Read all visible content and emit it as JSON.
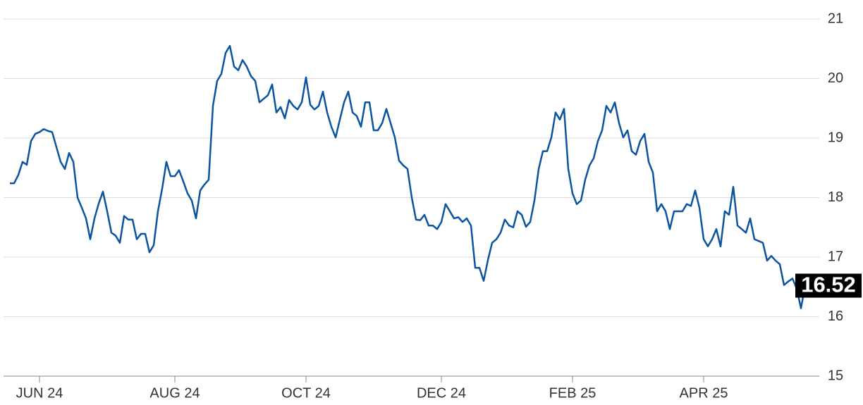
{
  "chart_data": {
    "type": "line",
    "categories": [
      null,
      null,
      null,
      null,
      null,
      null,
      null,
      "JUN 24",
      null,
      null,
      null,
      null,
      null,
      null,
      null,
      null,
      null,
      null,
      null,
      null,
      null,
      null,
      null,
      null,
      null,
      null,
      null,
      null,
      null,
      null,
      null,
      null,
      null,
      null,
      null,
      null,
      null,
      null,
      null,
      "AUG 24",
      null,
      null,
      null,
      null,
      null,
      null,
      null,
      null,
      null,
      null,
      null,
      null,
      null,
      null,
      null,
      null,
      null,
      null,
      null,
      null,
      null,
      null,
      null,
      null,
      null,
      null,
      null,
      null,
      null,
      null,
      "OCT 24",
      null,
      null,
      null,
      null,
      null,
      null,
      null,
      null,
      null,
      null,
      null,
      null,
      null,
      null,
      null,
      null,
      null,
      null,
      null,
      null,
      null,
      null,
      null,
      null,
      null,
      null,
      null,
      null,
      null,
      null,
      null,
      "DEC 24",
      null,
      null,
      null,
      null,
      null,
      null,
      null,
      null,
      null,
      null,
      null,
      null,
      null,
      null,
      null,
      null,
      null,
      null,
      null,
      null,
      null,
      null,
      null,
      null,
      null,
      null,
      null,
      null,
      null,
      null,
      "FEB 25",
      null,
      null,
      null,
      null,
      null,
      null,
      null,
      null,
      null,
      null,
      null,
      null,
      null,
      null,
      null,
      null,
      null,
      null,
      null,
      null,
      null,
      null,
      null,
      null,
      null,
      null,
      null,
      null,
      null,
      null,
      "APR 25",
      null,
      null,
      null,
      null,
      null,
      null,
      null,
      null,
      null,
      null,
      null,
      null,
      null,
      null,
      null,
      null,
      null,
      null,
      null,
      null,
      null,
      null,
      null,
      null
    ],
    "series": [
      {
        "color": "#0b54a0",
        "values": [
          18.24,
          18.24,
          18.38,
          18.6,
          18.55,
          18.95,
          19.07,
          19.1,
          19.15,
          19.12,
          19.1,
          18.85,
          18.6,
          18.48,
          18.75,
          18.6,
          18.0,
          17.83,
          17.65,
          17.3,
          17.65,
          17.9,
          18.1,
          17.77,
          17.41,
          17.36,
          17.24,
          17.69,
          17.63,
          17.63,
          17.3,
          17.39,
          17.39,
          17.08,
          17.2,
          17.77,
          18.15,
          18.6,
          18.36,
          18.36,
          18.46,
          18.27,
          18.07,
          17.95,
          17.65,
          18.12,
          18.22,
          18.3,
          19.54,
          19.96,
          20.08,
          20.43,
          20.55,
          20.2,
          20.14,
          20.31,
          20.2,
          20.04,
          19.96,
          19.6,
          19.66,
          19.72,
          19.9,
          19.43,
          19.52,
          19.33,
          19.64,
          19.54,
          19.48,
          19.6,
          20.02,
          19.56,
          19.48,
          19.54,
          19.78,
          19.43,
          19.19,
          19.01,
          19.31,
          19.6,
          19.78,
          19.43,
          19.37,
          19.19,
          19.6,
          19.6,
          19.13,
          19.13,
          19.25,
          19.49,
          19.25,
          19.01,
          18.62,
          18.54,
          18.48,
          18.0,
          17.63,
          17.62,
          17.71,
          17.53,
          17.53,
          17.47,
          17.59,
          17.89,
          17.77,
          17.65,
          17.67,
          17.59,
          17.65,
          17.53,
          16.82,
          16.82,
          16.6,
          16.95,
          17.24,
          17.3,
          17.41,
          17.63,
          17.53,
          17.5,
          17.77,
          17.71,
          17.51,
          17.59,
          17.95,
          18.48,
          18.78,
          18.78,
          19.01,
          19.43,
          19.31,
          19.49,
          18.48,
          18.07,
          17.89,
          17.95,
          18.3,
          18.54,
          18.66,
          18.95,
          19.13,
          19.54,
          19.43,
          19.6,
          19.25,
          19.01,
          19.13,
          18.78,
          18.72,
          18.95,
          19.07,
          18.6,
          18.42,
          17.77,
          17.89,
          17.77,
          17.47,
          17.77,
          17.77,
          17.77,
          17.89,
          17.86,
          18.12,
          17.83,
          17.3,
          17.18,
          17.3,
          17.47,
          17.18,
          17.77,
          17.71,
          18.18,
          17.53,
          17.47,
          17.41,
          17.65,
          17.3,
          17.27,
          17.24,
          16.94,
          17.02,
          16.94,
          16.88,
          16.53,
          16.59,
          16.64,
          16.47,
          16.14,
          16.52
        ]
      }
    ],
    "ylim": [
      15,
      21
    ],
    "yticks": [
      15,
      16,
      17,
      18,
      19,
      20,
      21
    ],
    "grid": true
  }
}
